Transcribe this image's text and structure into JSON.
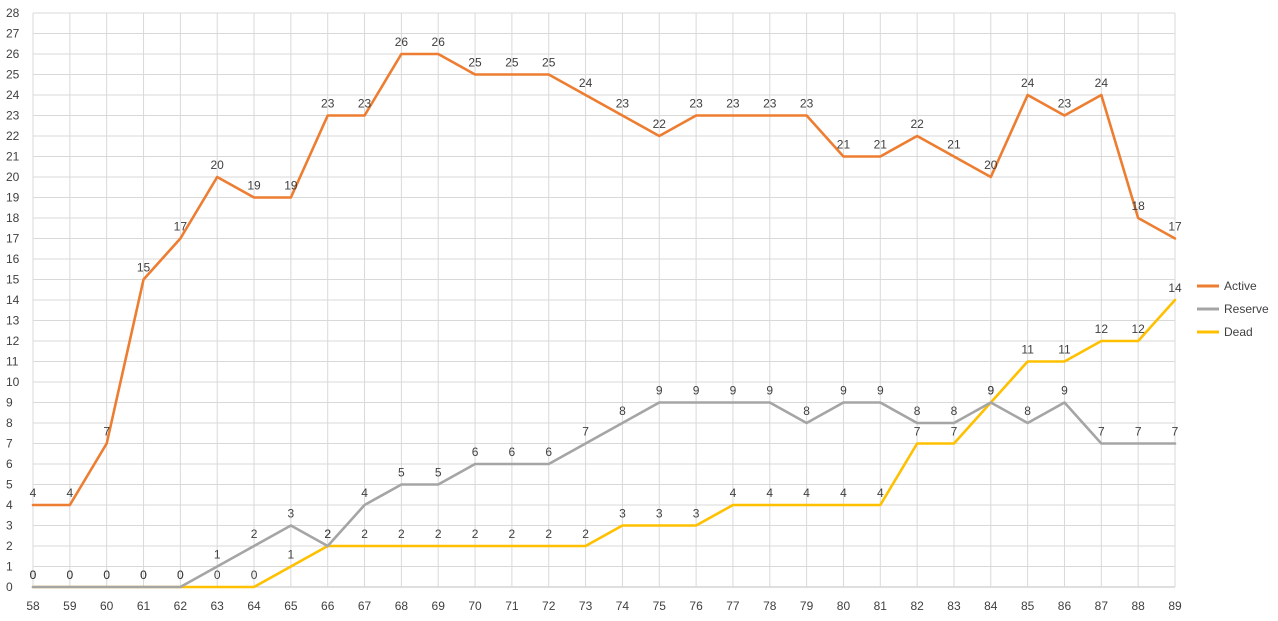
{
  "chart_data": {
    "type": "line",
    "x": [
      58,
      59,
      60,
      61,
      62,
      63,
      64,
      65,
      66,
      67,
      68,
      69,
      70,
      71,
      72,
      73,
      74,
      75,
      76,
      77,
      78,
      79,
      80,
      81,
      82,
      83,
      84,
      85,
      86,
      87,
      88,
      89
    ],
    "ylim": [
      0,
      28
    ],
    "ytick_step": 1,
    "grid": true,
    "legend_position": "right",
    "title": "",
    "xlabel": "",
    "ylabel": "",
    "series": [
      {
        "name": "Active",
        "color": "#ED7D31",
        "values": [
          4,
          4,
          7,
          15,
          17,
          20,
          19,
          19,
          23,
          23,
          26,
          26,
          25,
          25,
          25,
          24,
          23,
          22,
          23,
          23,
          23,
          23,
          21,
          21,
          22,
          21,
          20,
          24,
          23,
          24,
          18,
          17
        ]
      },
      {
        "name": "Reserve",
        "color": "#A5A5A5",
        "values": [
          0,
          0,
          0,
          0,
          0,
          1,
          2,
          3,
          2,
          4,
          5,
          5,
          6,
          6,
          6,
          7,
          8,
          9,
          9,
          9,
          9,
          8,
          9,
          9,
          8,
          8,
          9,
          8,
          9,
          7,
          7,
          7
        ]
      },
      {
        "name": "Dead",
        "color": "#FFC000",
        "values": [
          0,
          0,
          0,
          0,
          0,
          0,
          0,
          1,
          2,
          2,
          2,
          2,
          2,
          2,
          2,
          2,
          3,
          3,
          3,
          4,
          4,
          4,
          4,
          4,
          7,
          7,
          9,
          11,
          11,
          12,
          12,
          14
        ]
      }
    ]
  }
}
